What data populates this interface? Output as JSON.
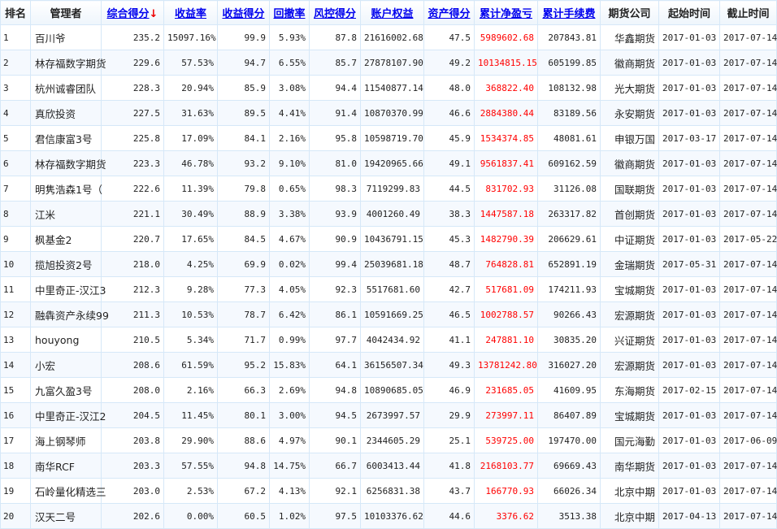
{
  "colors": {
    "link": "#0000ee",
    "pnl": "#ff0000",
    "border": "#d6e8f8",
    "row_alt": "#f5f9fe"
  },
  "header": [
    {
      "label": "排名",
      "link": false
    },
    {
      "label": "管理者",
      "link": false
    },
    {
      "label": "综合得分",
      "link": true,
      "sort": "↓"
    },
    {
      "label": "收益率",
      "link": true
    },
    {
      "label": "收益得分",
      "link": true
    },
    {
      "label": "回撤率",
      "link": true
    },
    {
      "label": "风控得分",
      "link": true
    },
    {
      "label": "账户权益",
      "link": true
    },
    {
      "label": "资产得分",
      "link": true
    },
    {
      "label": "累计净盈亏",
      "link": true
    },
    {
      "label": "累计手续费",
      "link": true
    },
    {
      "label": "期货公司",
      "link": false
    },
    {
      "label": "起始时间",
      "link": false
    },
    {
      "label": "截止时间",
      "link": false
    }
  ],
  "rows": [
    [
      "1",
      "百川爷",
      "235.2",
      "15097.16%",
      "99.9",
      "5.93%",
      "87.8",
      "21616002.68",
      "47.5",
      "5989602.68",
      "207843.81",
      "华鑫期货",
      "2017-01-03",
      "2017-07-14"
    ],
    [
      "2",
      "林存福数字期货",
      "229.6",
      "57.53%",
      "94.7",
      "6.55%",
      "85.7",
      "27878107.90",
      "49.2",
      "10134815.15",
      "605199.85",
      "徽商期货",
      "2017-01-03",
      "2017-07-14"
    ],
    [
      "3",
      "杭州诚睿团队",
      "228.3",
      "20.94%",
      "85.9",
      "3.08%",
      "94.4",
      "11540877.14",
      "48.0",
      "368822.40",
      "108132.98",
      "光大期货",
      "2017-01-03",
      "2017-07-14"
    ],
    [
      "4",
      "真欣投资",
      "227.5",
      "31.63%",
      "89.5",
      "4.41%",
      "91.4",
      "10870370.99",
      "46.6",
      "2884380.44",
      "83189.56",
      "永安期货",
      "2017-01-03",
      "2017-07-14"
    ],
    [
      "5",
      "君信康富3号",
      "225.8",
      "17.09%",
      "84.1",
      "2.16%",
      "95.8",
      "10598719.70",
      "45.9",
      "1534374.85",
      "48081.61",
      "申银万国",
      "2017-03-17",
      "2017-07-14"
    ],
    [
      "6",
      "林存福数字期货",
      "223.3",
      "46.78%",
      "93.2",
      "9.10%",
      "81.0",
      "19420965.66",
      "49.1",
      "9561837.41",
      "609162.59",
      "徽商期货",
      "2017-01-03",
      "2017-07-14"
    ],
    [
      "7",
      "明隽浩森1号（",
      "222.6",
      "11.39%",
      "79.8",
      "0.65%",
      "98.3",
      "7119299.83",
      "44.5",
      "831702.93",
      "31126.08",
      "国联期货",
      "2017-01-03",
      "2017-07-14"
    ],
    [
      "8",
      "江米",
      "221.1",
      "30.49%",
      "88.9",
      "3.38%",
      "93.9",
      "4001260.49",
      "38.3",
      "1447587.18",
      "263317.82",
      "首创期货",
      "2017-01-03",
      "2017-07-14"
    ],
    [
      "9",
      "枫基金2",
      "220.7",
      "17.65%",
      "84.5",
      "4.67%",
      "90.9",
      "10436791.15",
      "45.3",
      "1482790.39",
      "206629.61",
      "中证期货",
      "2017-01-03",
      "2017-05-22"
    ],
    [
      "10",
      "揽旭投资2号",
      "218.0",
      "4.25%",
      "69.9",
      "0.02%",
      "99.4",
      "25039681.18",
      "48.7",
      "764828.81",
      "652891.19",
      "金瑞期货",
      "2017-05-31",
      "2017-07-14"
    ],
    [
      "11",
      "中里奇正-汉江3",
      "212.3",
      "9.28%",
      "77.3",
      "4.05%",
      "92.3",
      "5517681.60",
      "42.7",
      "517681.09",
      "174211.93",
      "宝城期货",
      "2017-01-03",
      "2017-07-14"
    ],
    [
      "12",
      "融犇资产永续99",
      "211.3",
      "10.53%",
      "78.7",
      "6.42%",
      "86.1",
      "10591669.25",
      "46.5",
      "1002788.57",
      "90266.43",
      "宏源期货",
      "2017-01-03",
      "2017-07-14"
    ],
    [
      "13",
      "houyong",
      "210.5",
      "5.34%",
      "71.7",
      "0.99%",
      "97.7",
      "4042434.92",
      "41.1",
      "247881.10",
      "30835.20",
      "兴证期货",
      "2017-01-03",
      "2017-07-14"
    ],
    [
      "14",
      "小宏",
      "208.6",
      "61.59%",
      "95.2",
      "15.83%",
      "64.1",
      "36156507.34",
      "49.3",
      "13781242.80",
      "316027.20",
      "宏源期货",
      "2017-01-03",
      "2017-07-14"
    ],
    [
      "15",
      "九富久盈3号",
      "208.0",
      "2.16%",
      "66.3",
      "2.69%",
      "94.8",
      "10890685.05",
      "46.9",
      "231685.05",
      "41609.95",
      "东海期货",
      "2017-02-15",
      "2017-07-14"
    ],
    [
      "16",
      "中里奇正-汉江2",
      "204.5",
      "11.45%",
      "80.1",
      "3.00%",
      "94.5",
      "2673997.57",
      "29.9",
      "273997.11",
      "86407.89",
      "宝城期货",
      "2017-01-03",
      "2017-07-14"
    ],
    [
      "17",
      "海上钢琴师",
      "203.8",
      "29.90%",
      "88.6",
      "4.97%",
      "90.1",
      "2344605.29",
      "25.1",
      "539725.00",
      "197470.00",
      "国元海勤",
      "2017-01-03",
      "2017-06-09"
    ],
    [
      "18",
      "南华RCF",
      "203.3",
      "57.55%",
      "94.8",
      "14.75%",
      "66.7",
      "6003413.44",
      "41.8",
      "2168103.77",
      "69669.43",
      "南华期货",
      "2017-01-03",
      "2017-07-14"
    ],
    [
      "19",
      "石岭量化精选三",
      "203.0",
      "2.53%",
      "67.2",
      "4.13%",
      "92.1",
      "6256831.38",
      "43.7",
      "166770.93",
      "66026.34",
      "北京中期",
      "2017-01-03",
      "2017-07-14"
    ],
    [
      "20",
      "汉天二号",
      "202.6",
      "0.00%",
      "60.5",
      "1.02%",
      "97.5",
      "10103376.62",
      "44.6",
      "3376.62",
      "3513.38",
      "北京中期",
      "2017-04-13",
      "2017-07-14"
    ]
  ]
}
